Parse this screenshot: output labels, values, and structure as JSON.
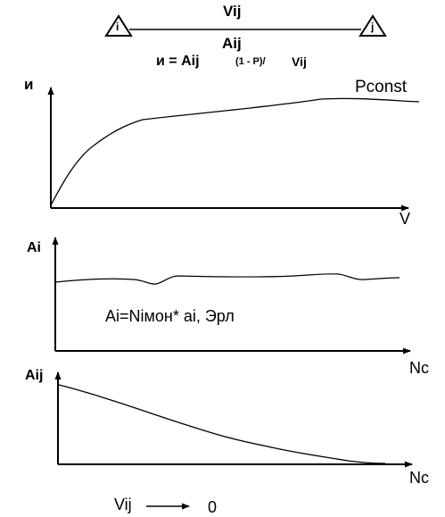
{
  "header": {
    "node_i": "i",
    "node_j": "j",
    "link_top_label": "Vij",
    "link_bottom_label": "Aij",
    "formula_main": "и = Aij",
    "formula_mid": "(1 - P)/",
    "formula_end": "Vij"
  },
  "plot1": {
    "ylabel": "и",
    "xlabel": "V",
    "curve_label": "Pconst"
  },
  "plot2": {
    "ylabel": "Ai",
    "xlabel": "Nc",
    "annotation": "Ai=Niмон* ai, Эрл"
  },
  "plot3": {
    "ylabel": "Aij",
    "xlabel": "Nc"
  },
  "footer": {
    "left": "Vij",
    "right": "0"
  }
}
